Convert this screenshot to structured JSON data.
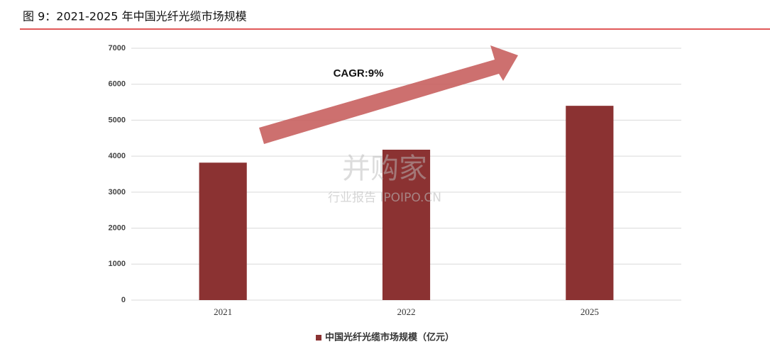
{
  "chart_data": {
    "type": "bar",
    "title": "图 9：2021-2025 年中国光纤光缆市场规模",
    "annotation": "CAGR:9%",
    "watermark": [
      "并购家",
      "行业报告 IPOIPO.CN"
    ],
    "categories": [
      "2021",
      "2022",
      "2025"
    ],
    "series": [
      {
        "name": "中国光纤光缆市场规模（亿元）",
        "color": "#8b3232",
        "values": [
          3820,
          4180,
          5400
        ]
      }
    ],
    "ylim": [
      0,
      7000
    ],
    "yticks": [
      0,
      1000,
      2000,
      3000,
      4000,
      5000,
      6000,
      7000
    ],
    "grid": true,
    "legend": "bottom"
  }
}
